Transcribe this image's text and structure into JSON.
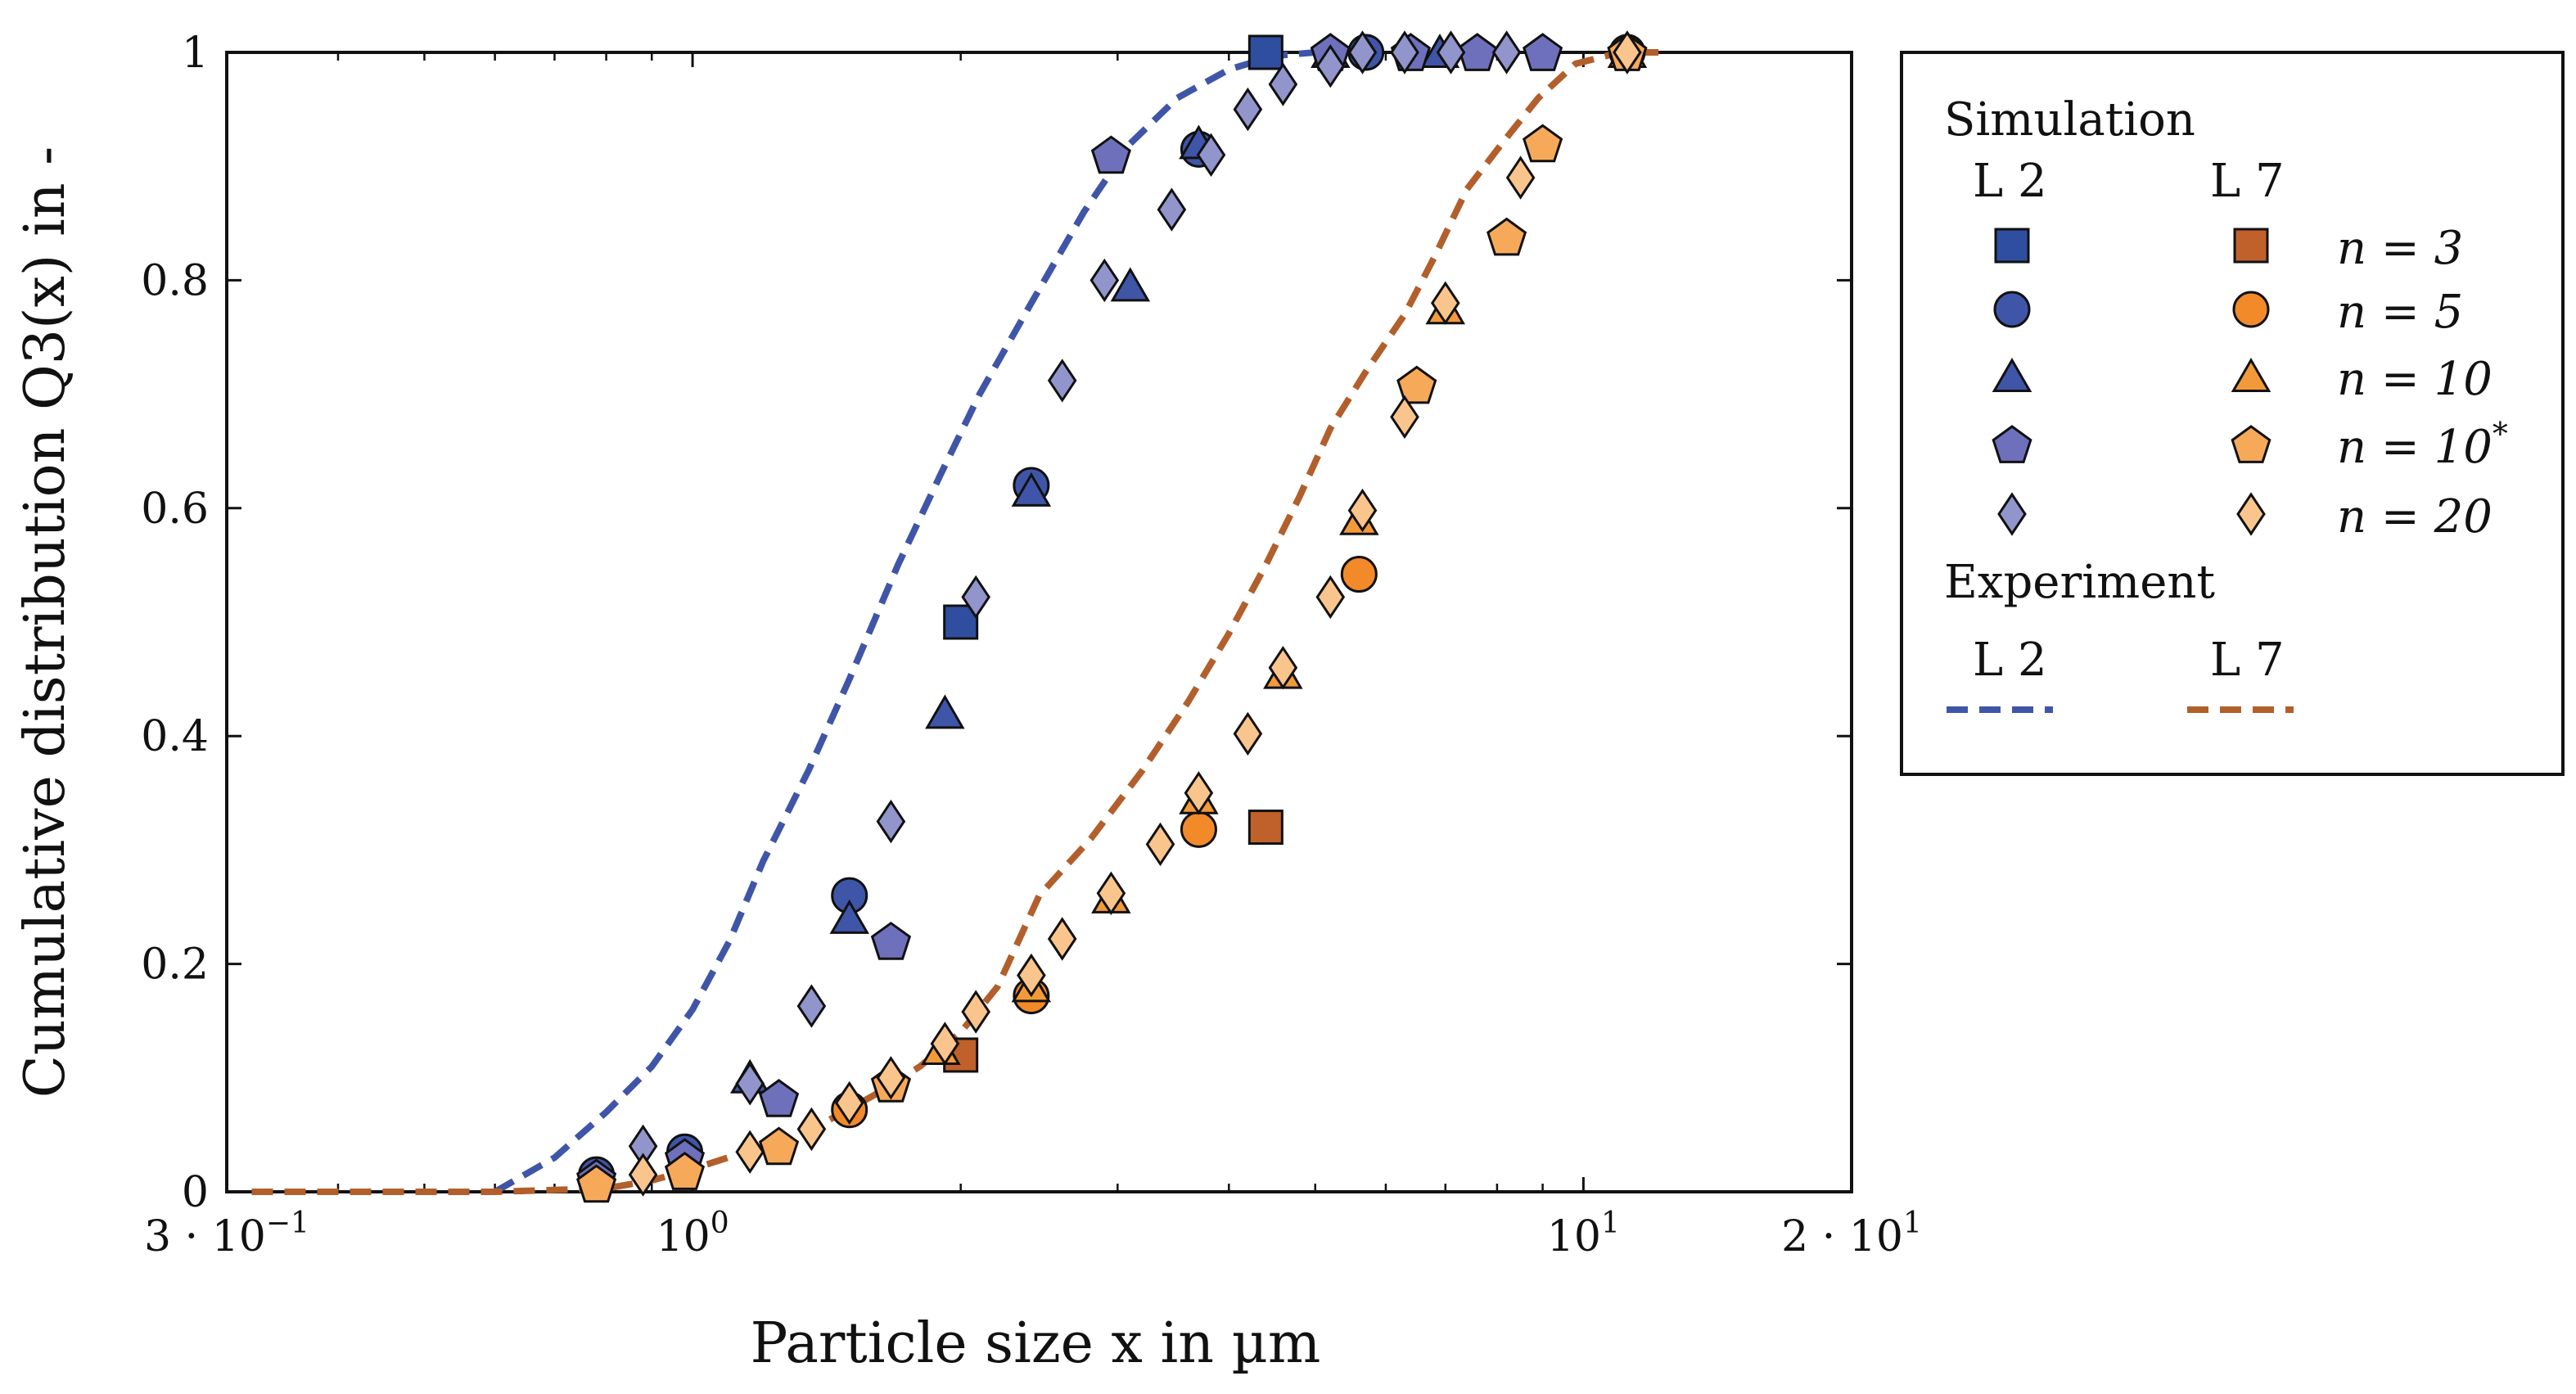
{
  "chart_data": {
    "type": "scatter",
    "xlabel": "Particle size x in µm",
    "ylabel": "Cumulative distribution Q3(x) in -",
    "xscale": "log",
    "xlim": [
      0.3,
      20
    ],
    "ylim": [
      0,
      1
    ],
    "xtick_labels": [
      "3 · 10−1",
      "100",
      "101",
      "2 · 101"
    ],
    "ytick_labels": [
      "0",
      "0.2",
      "0.4",
      "0.6",
      "0.8",
      "1"
    ],
    "colors": {
      "L2": [
        "#2f4ea0",
        "#3f55a8",
        "#3f55a8",
        "#6e70bc",
        "#9294cc"
      ],
      "L7": [
        "#c0602a",
        "#f28a2a",
        "#f29a3a",
        "#f7a95a",
        "#f9c58c"
      ],
      "exp_L2": "#3f55a8",
      "exp_L7": "#b25f2c"
    },
    "legend": {
      "placement": "outside-right",
      "simulation_title": "Simulation",
      "experiment_title": "Experiment",
      "col_L2": "L 2",
      "col_L7": "L 7",
      "n_labels": [
        "n = 3",
        "n = 5",
        "n = 10",
        "n = 10*",
        "n = 20"
      ]
    },
    "series": [
      {
        "group": "L2",
        "n": "3",
        "marker": "square",
        "points": [
          [
            2.0,
            0.5
          ],
          [
            4.4,
            1.0
          ]
        ]
      },
      {
        "group": "L2",
        "n": "5",
        "marker": "circle",
        "points": [
          [
            0.78,
            0.015
          ],
          [
            0.98,
            0.035
          ],
          [
            1.5,
            0.26
          ],
          [
            2.4,
            0.62
          ],
          [
            3.7,
            0.915
          ],
          [
            5.7,
            1.0
          ]
        ]
      },
      {
        "group": "L2",
        "n": "10",
        "marker": "triangle",
        "points": [
          [
            1.16,
            0.1
          ],
          [
            1.5,
            0.24
          ],
          [
            1.92,
            0.42
          ],
          [
            2.4,
            0.615
          ],
          [
            3.1,
            0.795
          ],
          [
            3.7,
            0.92
          ],
          [
            5.2,
            1.0
          ],
          [
            6.9,
            1.0
          ]
        ]
      },
      {
        "group": "L2",
        "n": "10*",
        "marker": "pentagon",
        "points": [
          [
            0.78,
            0.012
          ],
          [
            0.98,
            0.03
          ],
          [
            1.25,
            0.082
          ],
          [
            1.67,
            0.22
          ],
          [
            2.95,
            0.91
          ],
          [
            5.2,
            1.0
          ],
          [
            6.4,
            1.0
          ],
          [
            7.6,
            1.0
          ],
          [
            9.0,
            1.0
          ]
        ]
      },
      {
        "group": "L2",
        "n": "20",
        "marker": "diamond",
        "points": [
          [
            0.88,
            0.04
          ],
          [
            1.16,
            0.095
          ],
          [
            1.36,
            0.163
          ],
          [
            1.67,
            0.325
          ],
          [
            2.08,
            0.522
          ],
          [
            2.6,
            0.712
          ],
          [
            2.9,
            0.8
          ],
          [
            3.45,
            0.862
          ],
          [
            3.82,
            0.91
          ],
          [
            4.2,
            0.95
          ],
          [
            4.6,
            0.972
          ],
          [
            5.2,
            0.988
          ],
          [
            5.65,
            1.0
          ],
          [
            6.3,
            1.0
          ],
          [
            7.1,
            1.0
          ],
          [
            8.2,
            1.0
          ],
          [
            11.2,
            1.0
          ]
        ]
      },
      {
        "group": "L7",
        "n": "3",
        "marker": "square",
        "points": [
          [
            2.0,
            0.12
          ],
          [
            4.4,
            0.32
          ]
        ]
      },
      {
        "group": "L7",
        "n": "5",
        "marker": "circle",
        "points": [
          [
            1.5,
            0.072
          ],
          [
            2.4,
            0.172
          ],
          [
            3.7,
            0.318
          ],
          [
            5.6,
            0.542
          ],
          [
            11.2,
            1.0
          ]
        ]
      },
      {
        "group": "L7",
        "n": "10",
        "marker": "triangle",
        "points": [
          [
            1.9,
            0.125
          ],
          [
            2.4,
            0.18
          ],
          [
            2.95,
            0.258
          ],
          [
            3.7,
            0.345
          ],
          [
            4.6,
            0.455
          ],
          [
            5.6,
            0.59
          ],
          [
            7.0,
            0.775
          ],
          [
            11.2,
            1.0
          ]
        ]
      },
      {
        "group": "L7",
        "n": "10*",
        "marker": "pentagon",
        "points": [
          [
            0.78,
            0.007
          ],
          [
            0.98,
            0.018
          ],
          [
            1.25,
            0.04
          ],
          [
            1.67,
            0.095
          ],
          [
            6.5,
            0.708
          ],
          [
            8.2,
            0.838
          ],
          [
            9.0,
            0.92
          ],
          [
            11.2,
            1.0
          ]
        ]
      },
      {
        "group": "L7",
        "n": "20",
        "marker": "diamond",
        "points": [
          [
            0.88,
            0.015
          ],
          [
            1.16,
            0.035
          ],
          [
            1.36,
            0.055
          ],
          [
            1.5,
            0.078
          ],
          [
            1.67,
            0.1
          ],
          [
            1.92,
            0.13
          ],
          [
            2.08,
            0.158
          ],
          [
            2.4,
            0.19
          ],
          [
            2.6,
            0.222
          ],
          [
            2.95,
            0.262
          ],
          [
            3.35,
            0.305
          ],
          [
            3.7,
            0.35
          ],
          [
            4.2,
            0.402
          ],
          [
            4.6,
            0.46
          ],
          [
            5.2,
            0.522
          ],
          [
            5.65,
            0.598
          ],
          [
            6.3,
            0.68
          ],
          [
            7.0,
            0.78
          ],
          [
            8.5,
            0.89
          ],
          [
            11.2,
            1.0
          ]
        ]
      }
    ],
    "curves": [
      {
        "group": "exp_L2",
        "style": "dashed",
        "points": [
          [
            0.6,
            0.0
          ],
          [
            0.7,
            0.03
          ],
          [
            0.8,
            0.07
          ],
          [
            0.9,
            0.11
          ],
          [
            1.0,
            0.16
          ],
          [
            1.1,
            0.22
          ],
          [
            1.2,
            0.29
          ],
          [
            1.35,
            0.37
          ],
          [
            1.5,
            0.45
          ],
          [
            1.7,
            0.55
          ],
          [
            1.9,
            0.63
          ],
          [
            2.1,
            0.7
          ],
          [
            2.4,
            0.78
          ],
          [
            2.75,
            0.86
          ],
          [
            3.1,
            0.92
          ],
          [
            3.5,
            0.96
          ],
          [
            4.0,
            0.985
          ],
          [
            4.5,
            0.997
          ],
          [
            5.0,
            1.0
          ],
          [
            5.6,
            1.0
          ]
        ]
      },
      {
        "group": "exp_L7",
        "style": "dashed",
        "points": [
          [
            0.32,
            0.0
          ],
          [
            0.6,
            0.0
          ],
          [
            0.8,
            0.003
          ],
          [
            0.9,
            0.01
          ],
          [
            1.0,
            0.02
          ],
          [
            1.2,
            0.04
          ],
          [
            1.4,
            0.06
          ],
          [
            1.6,
            0.085
          ],
          [
            1.8,
            0.11
          ],
          [
            2.0,
            0.14
          ],
          [
            2.2,
            0.18
          ],
          [
            2.45,
            0.26
          ],
          [
            2.8,
            0.31
          ],
          [
            3.2,
            0.37
          ],
          [
            3.6,
            0.43
          ],
          [
            4.0,
            0.49
          ],
          [
            4.4,
            0.55
          ],
          [
            4.8,
            0.61
          ],
          [
            5.2,
            0.67
          ],
          [
            5.7,
            0.72
          ],
          [
            6.3,
            0.77
          ],
          [
            6.8,
            0.82
          ],
          [
            7.4,
            0.88
          ],
          [
            8.1,
            0.92
          ],
          [
            8.9,
            0.96
          ],
          [
            9.8,
            0.99
          ],
          [
            11.0,
            1.0
          ],
          [
            12.5,
            1.0
          ]
        ]
      }
    ]
  }
}
